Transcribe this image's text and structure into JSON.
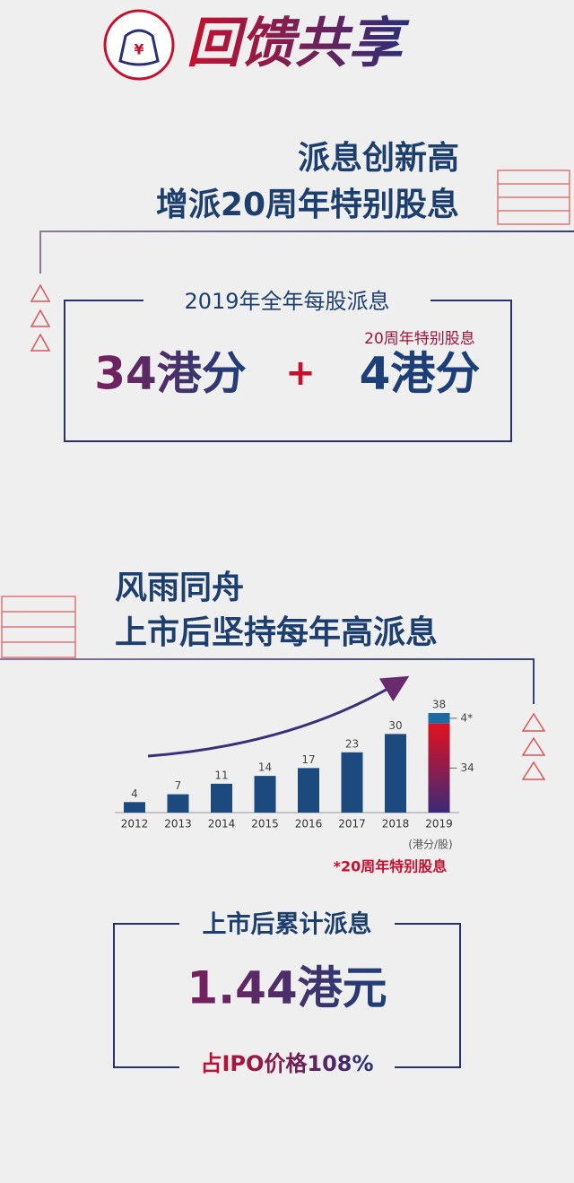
{
  "header": {
    "title": "回馈共享",
    "icon": "¥"
  },
  "section1": {
    "title_lines": [
      "派息创新高",
      "增派20周年特别股息"
    ],
    "box_title": "2019年全年每股派息",
    "regular": "34港分",
    "plus": "+",
    "special_label": "20周年特别股息",
    "special": "4港分"
  },
  "section2": {
    "title_lines": [
      "风雨同舟",
      "上市后坚持每年高派息"
    ]
  },
  "chart_data": {
    "type": "bar",
    "categories": [
      "2012",
      "2013",
      "2014",
      "2015",
      "2016",
      "2017",
      "2018",
      "2019"
    ],
    "series": [
      {
        "color": "#1d4a7e",
        "values": [
          4,
          7,
          11,
          14,
          17,
          23,
          30,
          34
        ]
      },
      {
        "color": "#1e6aa3",
        "values": [
          null,
          null,
          null,
          null,
          null,
          null,
          null,
          4
        ],
        "value_labels": [
          null,
          null,
          null,
          null,
          null,
          null,
          null,
          "4*"
        ]
      }
    ],
    "totals": [
      4,
      7,
      11,
      14,
      17,
      23,
      30,
      38
    ],
    "unit": "(港分/股)",
    "footnote": "*20周年特别股息"
  },
  "section3": {
    "box_title": "上市后累计派息",
    "value": "1.44港元",
    "note": "占IPO价格108%"
  }
}
